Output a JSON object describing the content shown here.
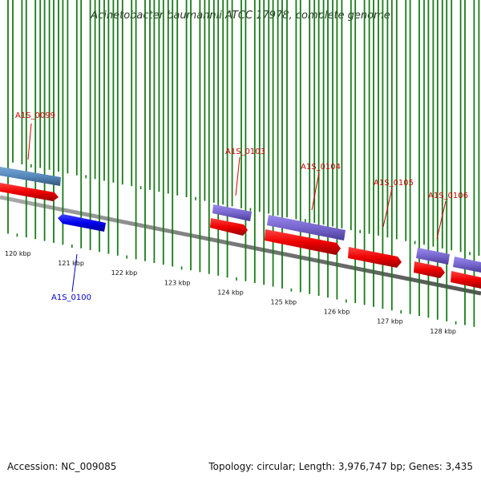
{
  "title": "Acinetobacter baumannii ATCC 17978, complete genome",
  "footer": {
    "accession": "Accession: NC_009085",
    "summary": "Topology: circular; Length: 3,976,747 bp; Genes: 3,435"
  },
  "colors": {
    "backbone": "#808080",
    "cds_forward": "#ee0000",
    "cds_reverse": "#0000ee",
    "feature_purple": "#7766cc",
    "feature_steelblue": "#5588bb",
    "tick_green": "#1a7a1a",
    "label_forward": "#cc0000",
    "label_reverse": "#0000cc"
  },
  "ticks": [
    "120 kbp",
    "121 kbp",
    "122 kbp",
    "123 kbp",
    "124 kbp",
    "125 kbp",
    "126 kbp",
    "127 kbp",
    "128 kbp"
  ],
  "genes": [
    {
      "id": "A1S_0099",
      "strand": "forward"
    },
    {
      "id": "A1S_0100",
      "strand": "reverse"
    },
    {
      "id": "A1S_0103",
      "strand": "forward"
    },
    {
      "id": "A1S_0104",
      "strand": "forward"
    },
    {
      "id": "A1S_0105",
      "strand": "forward"
    },
    {
      "id": "A1S_0106",
      "strand": "forward"
    }
  ]
}
